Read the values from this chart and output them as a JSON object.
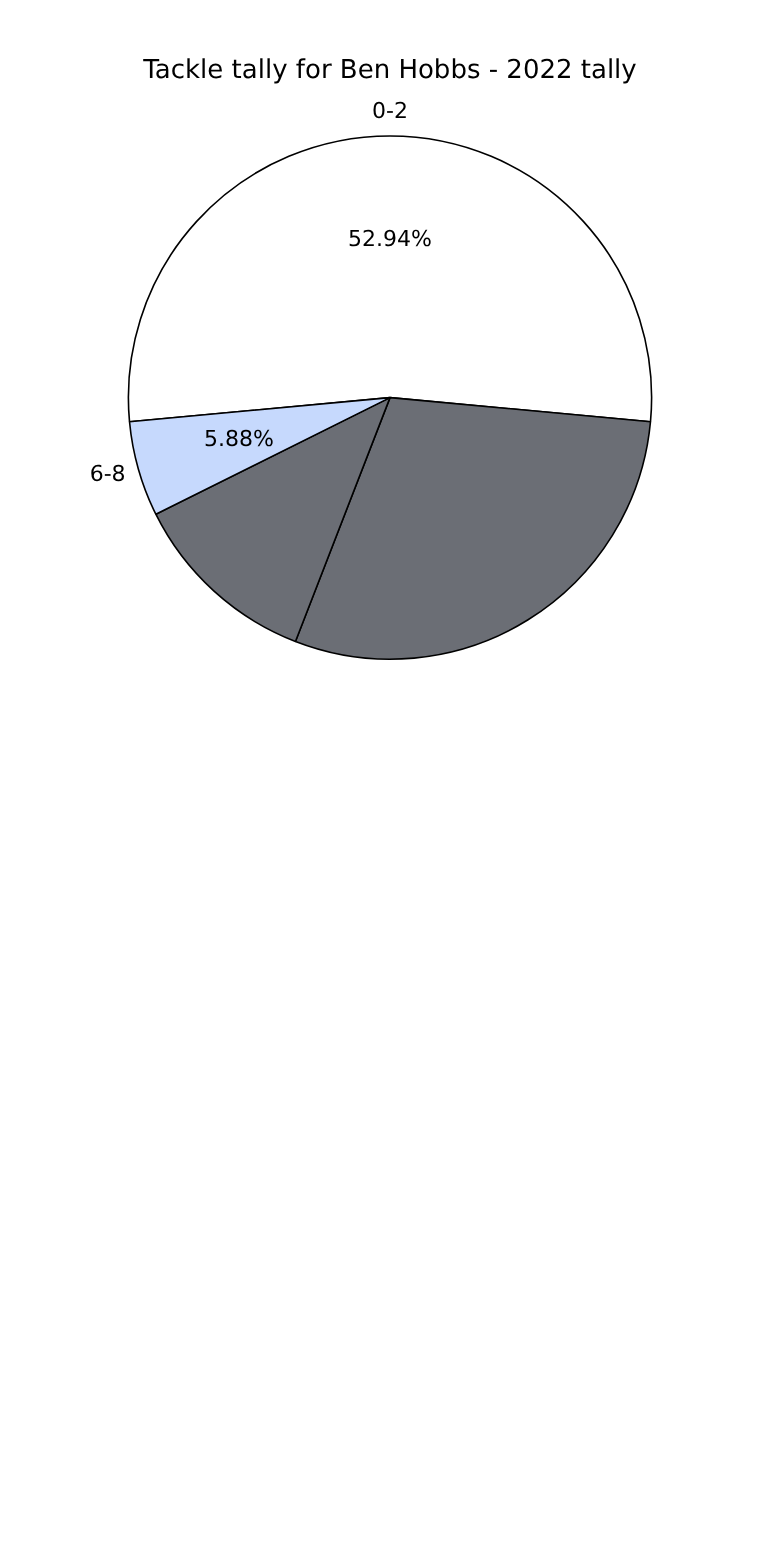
{
  "chart_data": {
    "type": "pie",
    "title": "Tackle tally for Ben Hobbs - 2022 tally",
    "categories": [
      "0-2",
      null,
      null,
      "6-8"
    ],
    "values": [
      52.94,
      29.41,
      11.76,
      5.88
    ],
    "colors": [
      "#ffffff",
      "#6b6e75",
      "#6b6e75",
      "#c6d9fd"
    ],
    "value_labels": [
      "52.94%",
      null,
      null,
      "5.88%"
    ],
    "legend": false
  }
}
